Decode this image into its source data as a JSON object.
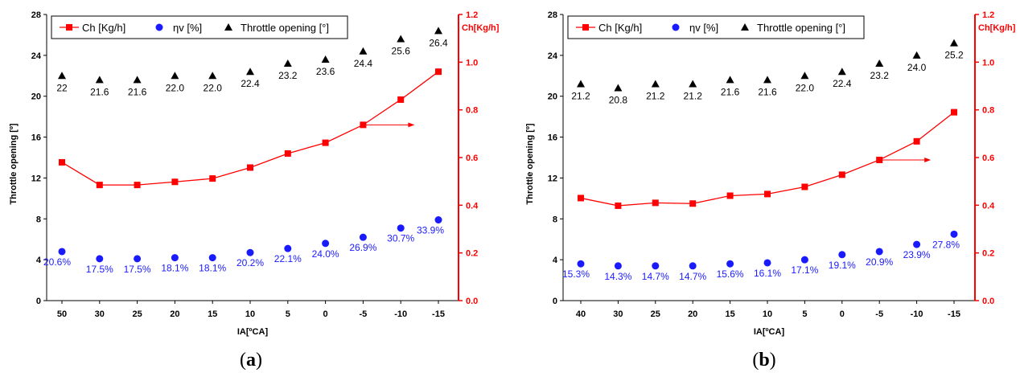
{
  "colors": {
    "ch": "#ff0000",
    "eta": "#1a1aff",
    "throttle": "#000000"
  },
  "chart_data": [
    {
      "type": "scatter",
      "panel_label": {
        "open": "(",
        "letter": "a",
        "close": ")"
      },
      "xlabel": "IA[ºCA]",
      "ylabel": "Throttle opening [º]",
      "y2label": "Ch[Kg/h]",
      "categories": [
        "50",
        "30",
        "25",
        "20",
        "15",
        "10",
        "5",
        "0",
        "-5",
        "-10",
        "-15"
      ],
      "ylim": [
        0,
        28
      ],
      "yticks": [
        "0",
        "4",
        "8",
        "12",
        "16",
        "20",
        "24",
        "28"
      ],
      "y2lim": [
        0,
        1.2
      ],
      "y2ticks": [
        "0.0",
        "0.2",
        "0.4",
        "0.6",
        "0.8",
        "1.0",
        "1.2"
      ],
      "legend": [
        "Ch [Kg/h]",
        "ηv [%]",
        "Throttle opening [°]"
      ],
      "series": [
        {
          "name": "Ch [Kg/h]",
          "axis": "right",
          "values": [
            0.58,
            0.485,
            0.485,
            0.498,
            0.512,
            0.558,
            0.617,
            0.662,
            0.737,
            0.843,
            0.96
          ]
        },
        {
          "name": "ηv [%]",
          "axis": "left",
          "values": [
            4.8,
            4.1,
            4.1,
            4.2,
            4.2,
            4.7,
            5.1,
            5.6,
            6.2,
            7.1,
            7.9
          ],
          "labels": [
            "20.6%",
            "17.5%",
            "17.5%",
            "18.1%",
            "18.1%",
            "20.2%",
            "22.1%",
            "24.0%",
            "26.9%",
            "30.7%",
            "33.9%"
          ]
        },
        {
          "name": "Throttle opening [°]",
          "axis": "left",
          "values": [
            22,
            21.6,
            21.6,
            22.0,
            22.0,
            22.4,
            23.2,
            23.6,
            24.4,
            25.6,
            26.4
          ],
          "labels": [
            "22",
            "21.6",
            "21.6",
            "22.0",
            "22.0",
            "22.4",
            "23.2",
            "23.6",
            "24.4",
            "25.6",
            "26.4"
          ]
        }
      ],
      "arrow": {
        "from_index": 8,
        "y2": 0.737
      }
    },
    {
      "type": "scatter",
      "panel_label": {
        "open": "(",
        "letter": "b",
        "close": ")"
      },
      "xlabel": "IA[ºCA]",
      "ylabel": "Throttle opening [º]",
      "y2label": "Ch[Kg/h]",
      "categories": [
        "40",
        "30",
        "25",
        "20",
        "15",
        "10",
        "5",
        "0",
        "-5",
        "-10",
        "-15"
      ],
      "ylim": [
        0,
        28
      ],
      "yticks": [
        "0",
        "4",
        "8",
        "12",
        "16",
        "20",
        "24",
        "28"
      ],
      "y2lim": [
        0,
        1.2
      ],
      "y2ticks": [
        "0.0",
        "0.2",
        "0.4",
        "0.6",
        "0.8",
        "1.0",
        "1.2"
      ],
      "legend": [
        "Ch [Kg/h]",
        "ηv [%]",
        "Throttle opening [°]"
      ],
      "series": [
        {
          "name": "Ch [Kg/h]",
          "axis": "right",
          "values": [
            0.43,
            0.398,
            0.41,
            0.407,
            0.44,
            0.447,
            0.477,
            0.528,
            0.59,
            0.668,
            0.79
          ]
        },
        {
          "name": "ηv [%]",
          "axis": "left",
          "values": [
            3.6,
            3.4,
            3.4,
            3.4,
            3.6,
            3.7,
            4.0,
            4.5,
            4.8,
            5.5,
            6.5
          ],
          "labels": [
            "15.3%",
            "14.3%",
            "14.7%",
            "14.7%",
            "15.6%",
            "16.1%",
            "17.1%",
            "19.1%",
            "20.9%",
            "23.9%",
            "27.8%"
          ]
        },
        {
          "name": "Throttle opening [°]",
          "axis": "left",
          "values": [
            21.2,
            20.8,
            21.2,
            21.2,
            21.6,
            21.6,
            22.0,
            22.4,
            23.2,
            24.0,
            25.2
          ],
          "labels": [
            "21.2",
            "20.8",
            "21.2",
            "21.2",
            "21.6",
            "21.6",
            "22.0",
            "22.4",
            "23.2",
            "24.0",
            "25.2"
          ]
        }
      ],
      "arrow": {
        "from_index": 8,
        "y2": 0.59
      }
    }
  ]
}
